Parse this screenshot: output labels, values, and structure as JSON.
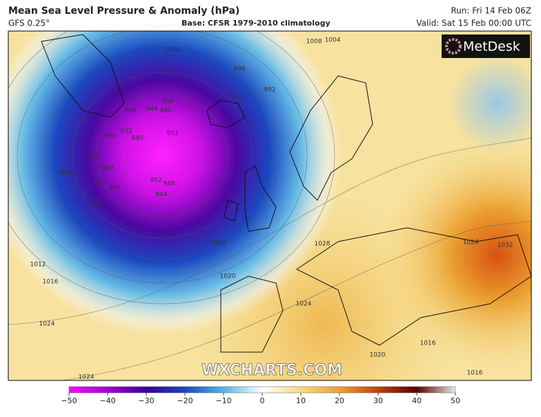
{
  "header": {
    "title": "Mean Sea Level Pressure & Anomaly (hPa)",
    "model": "GFS 0.25°",
    "base": "Base: CFSR 1979-2010 climatology",
    "run": "Run: Fri 14 Feb 06Z",
    "valid": "Valid: Sat 15 Feb 00:00 UTC"
  },
  "logo": "MetDesk",
  "watermark": "WXCHARTS.COM",
  "isobar_labels": [
    1004,
    1008,
    1004,
    996,
    992,
    976,
    956,
    948,
    944,
    940,
    932,
    936,
    940,
    952,
    964,
    960,
    972,
    968,
    980,
    984,
    952,
    948,
    944,
    1008,
    1012,
    1016,
    1020,
    1028,
    1024,
    1032,
    1024,
    1024,
    1016,
    1020,
    1024,
    1016
  ],
  "colorbar": {
    "range": [
      -50,
      50
    ],
    "colors": [
      "#ff00ff",
      "#a000e0",
      "#3a0090",
      "#1848c0",
      "#58b4e4",
      "#ffffff",
      "#f6da80",
      "#eba232",
      "#c04010",
      "#5a0000",
      "#e8e8e8"
    ],
    "ticks": [
      {
        "value": -50,
        "label": "−50"
      },
      {
        "value": -40,
        "label": "−40"
      },
      {
        "value": -30,
        "label": "−30"
      },
      {
        "value": -20,
        "label": "−20"
      },
      {
        "value": -10,
        "label": "−10"
      },
      0,
      10,
      20,
      30,
      40,
      50
    ]
  }
}
